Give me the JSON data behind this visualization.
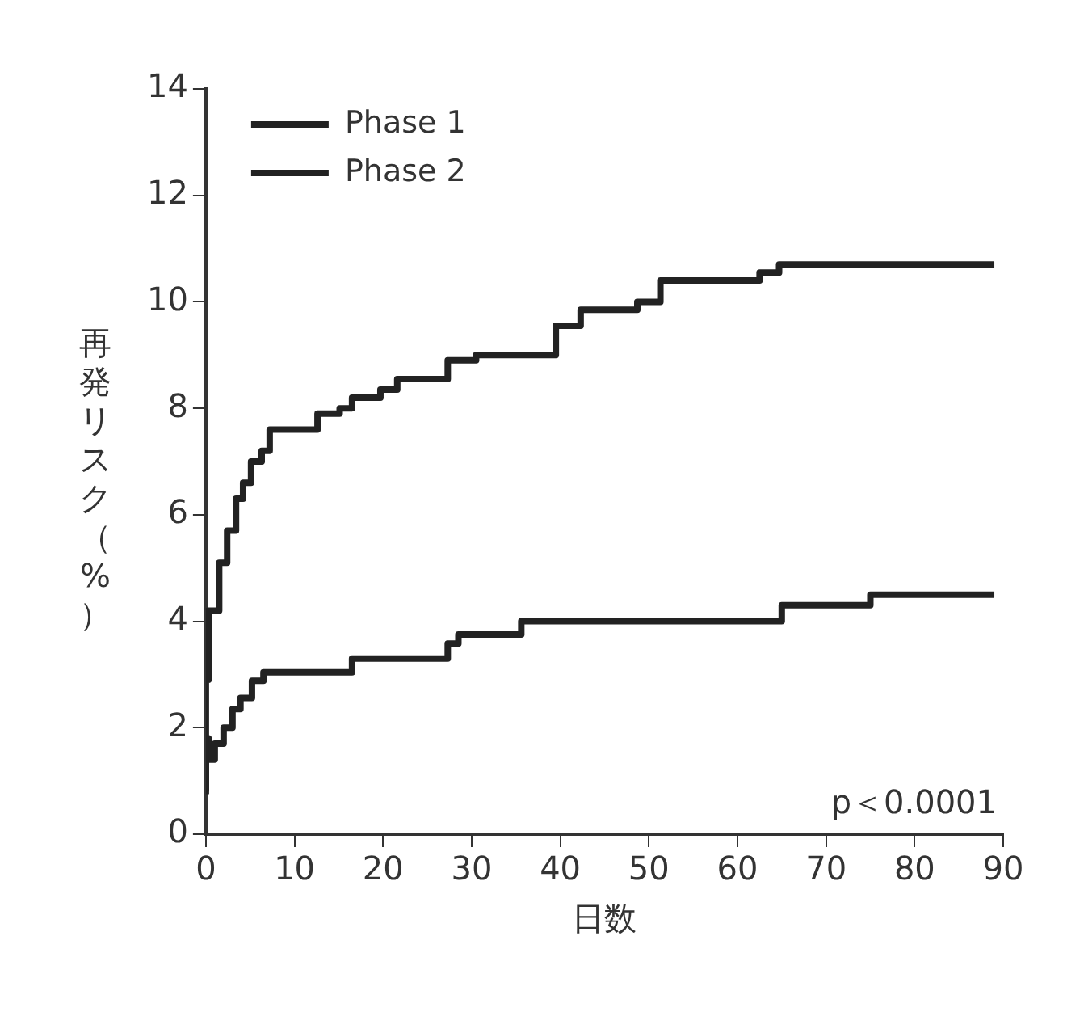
{
  "chart_data": {
    "type": "step",
    "xlabel": "日数",
    "ylabel": "再発リスク（%）",
    "xlim": [
      0,
      90
    ],
    "ylim": [
      0,
      14
    ],
    "xticks": [
      0,
      10,
      20,
      30,
      40,
      50,
      60,
      70,
      80,
      90
    ],
    "yticks": [
      0,
      2,
      4,
      6,
      8,
      10,
      12,
      14
    ],
    "grid": false,
    "legend": "top left",
    "marker": "none",
    "line_style": "solid",
    "annotations": [
      "p＜0.0001"
    ],
    "series": [
      {
        "name": "Phase 1",
        "color": "#222222",
        "x": [
          0,
          0.3,
          1.5,
          2.4,
          3.4,
          4.2,
          5.1,
          6.3,
          7.2,
          12.6,
          15.1,
          16.5,
          19.7,
          21.6,
          27.3,
          30.5,
          39.5,
          42.3,
          48.7,
          51.3,
          62.5,
          64.7,
          85.1,
          89
        ],
        "values": [
          0.8,
          2.9,
          4.2,
          5.1,
          5.7,
          6.3,
          6.6,
          7.0,
          7.2,
          7.6,
          7.9,
          8.0,
          8.2,
          8.35,
          8.55,
          8.9,
          9.0,
          9.55,
          9.85,
          10.0,
          10.4,
          10.55,
          10.7,
          10.7
        ]
      },
      {
        "name": "Phase 2",
        "color": "#222222",
        "x": [
          0,
          0.3,
          1,
          2,
          3,
          3.9,
          5.2,
          6.5,
          16.5,
          27.3,
          28.5,
          35.6,
          65,
          75,
          77,
          89
        ],
        "values": [
          0.75,
          1.8,
          1.4,
          1.7,
          2.0,
          2.35,
          2.56,
          2.88,
          3.04,
          3.3,
          3.58,
          3.75,
          4.0,
          4.3,
          4.5,
          4.5
        ]
      }
    ]
  }
}
